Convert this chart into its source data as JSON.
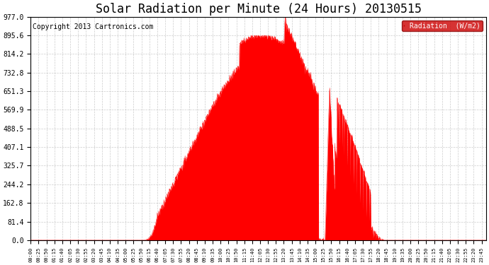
{
  "title": "Solar Radiation per Minute (24 Hours) 20130515",
  "copyright_text": "Copyright 2013 Cartronics.com",
  "legend_label": "Radiation  (W/m2)",
  "y_tick_labels": [
    "0.0",
    "81.4",
    "162.8",
    "244.2",
    "325.7",
    "407.1",
    "488.5",
    "569.9",
    "651.3",
    "732.8",
    "814.2",
    "895.6",
    "977.0"
  ],
  "y_tick_values": [
    0.0,
    81.4,
    162.8,
    244.2,
    325.7,
    407.1,
    488.5,
    569.9,
    651.3,
    732.8,
    814.2,
    895.6,
    977.0
  ],
  "ylim": [
    0.0,
    977.0
  ],
  "fill_color": "#ff0000",
  "line_color": "#ff0000",
  "background_color": "#ffffff",
  "grid_color": "#c0c0c0",
  "legend_bg": "#cc0000",
  "legend_text_color": "#ffffff",
  "dashed_zero_line_color": "#ff0000",
  "title_fontsize": 12,
  "copyright_fontsize": 7,
  "total_minutes": 1440,
  "sunrise_minute": 350,
  "sunset_minute": 1120,
  "peak_minute": 805,
  "peak_value": 977.0
}
